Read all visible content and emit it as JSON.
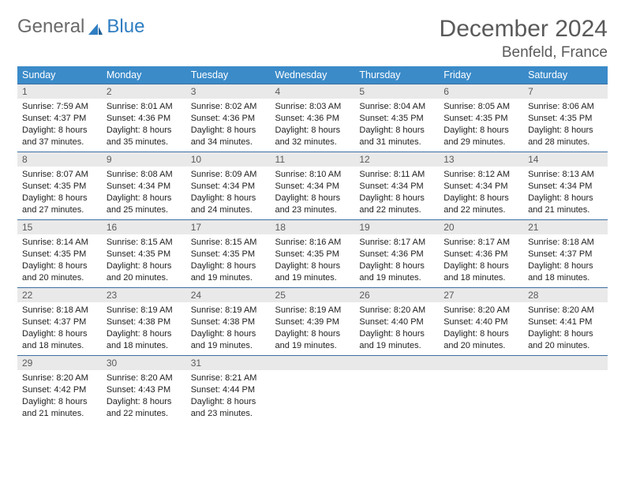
{
  "logo": {
    "text1": "General",
    "text2": "Blue"
  },
  "title": "December 2024",
  "location": "Benfeld, France",
  "colors": {
    "header_bg": "#3b8bc9",
    "header_text": "#ffffff",
    "row_border": "#3b6ea0",
    "daynum_bg": "#e9e9ea",
    "daynum_text": "#5a5a5a",
    "body_text": "#222222",
    "title_text": "#5a5a5a",
    "logo_gray": "#6a6a6a",
    "logo_blue": "#2f7ec2",
    "page_bg": "#ffffff"
  },
  "weekdays": [
    "Sunday",
    "Monday",
    "Tuesday",
    "Wednesday",
    "Thursday",
    "Friday",
    "Saturday"
  ],
  "weeks": [
    [
      {
        "n": "1",
        "sr": "7:59 AM",
        "ss": "4:37 PM",
        "dl": "8 hours and 37 minutes."
      },
      {
        "n": "2",
        "sr": "8:01 AM",
        "ss": "4:36 PM",
        "dl": "8 hours and 35 minutes."
      },
      {
        "n": "3",
        "sr": "8:02 AM",
        "ss": "4:36 PM",
        "dl": "8 hours and 34 minutes."
      },
      {
        "n": "4",
        "sr": "8:03 AM",
        "ss": "4:36 PM",
        "dl": "8 hours and 32 minutes."
      },
      {
        "n": "5",
        "sr": "8:04 AM",
        "ss": "4:35 PM",
        "dl": "8 hours and 31 minutes."
      },
      {
        "n": "6",
        "sr": "8:05 AM",
        "ss": "4:35 PM",
        "dl": "8 hours and 29 minutes."
      },
      {
        "n": "7",
        "sr": "8:06 AM",
        "ss": "4:35 PM",
        "dl": "8 hours and 28 minutes."
      }
    ],
    [
      {
        "n": "8",
        "sr": "8:07 AM",
        "ss": "4:35 PM",
        "dl": "8 hours and 27 minutes."
      },
      {
        "n": "9",
        "sr": "8:08 AM",
        "ss": "4:34 PM",
        "dl": "8 hours and 25 minutes."
      },
      {
        "n": "10",
        "sr": "8:09 AM",
        "ss": "4:34 PM",
        "dl": "8 hours and 24 minutes."
      },
      {
        "n": "11",
        "sr": "8:10 AM",
        "ss": "4:34 PM",
        "dl": "8 hours and 23 minutes."
      },
      {
        "n": "12",
        "sr": "8:11 AM",
        "ss": "4:34 PM",
        "dl": "8 hours and 22 minutes."
      },
      {
        "n": "13",
        "sr": "8:12 AM",
        "ss": "4:34 PM",
        "dl": "8 hours and 22 minutes."
      },
      {
        "n": "14",
        "sr": "8:13 AM",
        "ss": "4:34 PM",
        "dl": "8 hours and 21 minutes."
      }
    ],
    [
      {
        "n": "15",
        "sr": "8:14 AM",
        "ss": "4:35 PM",
        "dl": "8 hours and 20 minutes."
      },
      {
        "n": "16",
        "sr": "8:15 AM",
        "ss": "4:35 PM",
        "dl": "8 hours and 20 minutes."
      },
      {
        "n": "17",
        "sr": "8:15 AM",
        "ss": "4:35 PM",
        "dl": "8 hours and 19 minutes."
      },
      {
        "n": "18",
        "sr": "8:16 AM",
        "ss": "4:35 PM",
        "dl": "8 hours and 19 minutes."
      },
      {
        "n": "19",
        "sr": "8:17 AM",
        "ss": "4:36 PM",
        "dl": "8 hours and 19 minutes."
      },
      {
        "n": "20",
        "sr": "8:17 AM",
        "ss": "4:36 PM",
        "dl": "8 hours and 18 minutes."
      },
      {
        "n": "21",
        "sr": "8:18 AM",
        "ss": "4:37 PM",
        "dl": "8 hours and 18 minutes."
      }
    ],
    [
      {
        "n": "22",
        "sr": "8:18 AM",
        "ss": "4:37 PM",
        "dl": "8 hours and 18 minutes."
      },
      {
        "n": "23",
        "sr": "8:19 AM",
        "ss": "4:38 PM",
        "dl": "8 hours and 18 minutes."
      },
      {
        "n": "24",
        "sr": "8:19 AM",
        "ss": "4:38 PM",
        "dl": "8 hours and 19 minutes."
      },
      {
        "n": "25",
        "sr": "8:19 AM",
        "ss": "4:39 PM",
        "dl": "8 hours and 19 minutes."
      },
      {
        "n": "26",
        "sr": "8:20 AM",
        "ss": "4:40 PM",
        "dl": "8 hours and 19 minutes."
      },
      {
        "n": "27",
        "sr": "8:20 AM",
        "ss": "4:40 PM",
        "dl": "8 hours and 20 minutes."
      },
      {
        "n": "28",
        "sr": "8:20 AM",
        "ss": "4:41 PM",
        "dl": "8 hours and 20 minutes."
      }
    ],
    [
      {
        "n": "29",
        "sr": "8:20 AM",
        "ss": "4:42 PM",
        "dl": "8 hours and 21 minutes."
      },
      {
        "n": "30",
        "sr": "8:20 AM",
        "ss": "4:43 PM",
        "dl": "8 hours and 22 minutes."
      },
      {
        "n": "31",
        "sr": "8:21 AM",
        "ss": "4:44 PM",
        "dl": "8 hours and 23 minutes."
      },
      null,
      null,
      null,
      null
    ]
  ],
  "labels": {
    "sunrise": "Sunrise: ",
    "sunset": "Sunset: ",
    "daylight": "Daylight: "
  }
}
